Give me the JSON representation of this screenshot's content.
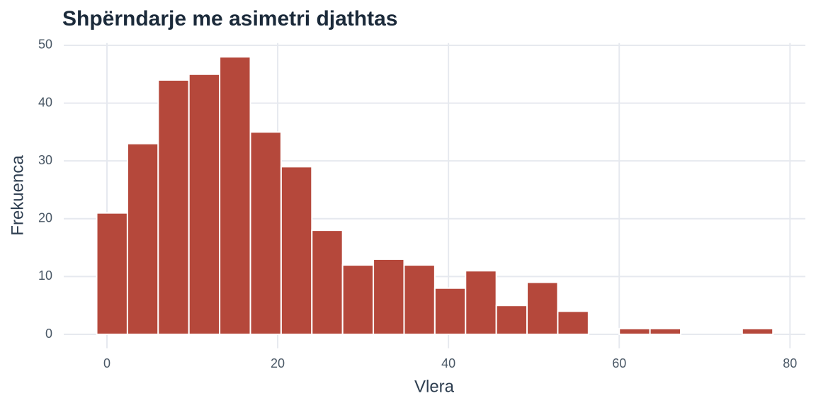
{
  "chart_data": {
    "type": "histogram",
    "title": "Shpërndarje me asimetri djathtas",
    "x_label": "Vlera",
    "y_label": "Frekuenca",
    "bins": [
      -1.2,
      2.4,
      6,
      9.6,
      13.2,
      16.8,
      20.4,
      24,
      27.6,
      31.2,
      34.8,
      38.4,
      42,
      45.6,
      49.2,
      52.8,
      56.4,
      60,
      63.6,
      67.2,
      70.8,
      74.4,
      78
    ],
    "values": [
      21,
      33,
      44,
      45,
      48,
      35,
      29,
      18,
      12,
      13,
      12,
      8,
      11,
      5,
      9,
      4,
      0,
      1,
      1,
      0,
      0,
      1
    ],
    "color": "#b5483b",
    "xlim": [
      -5.06,
      81.8
    ],
    "xticks": [
      0,
      20,
      40,
      60,
      80
    ],
    "ylim": [
      -2.4,
      50.4
    ],
    "yticks": [
      0,
      10,
      20,
      30,
      40,
      50
    ],
    "grid": true
  }
}
